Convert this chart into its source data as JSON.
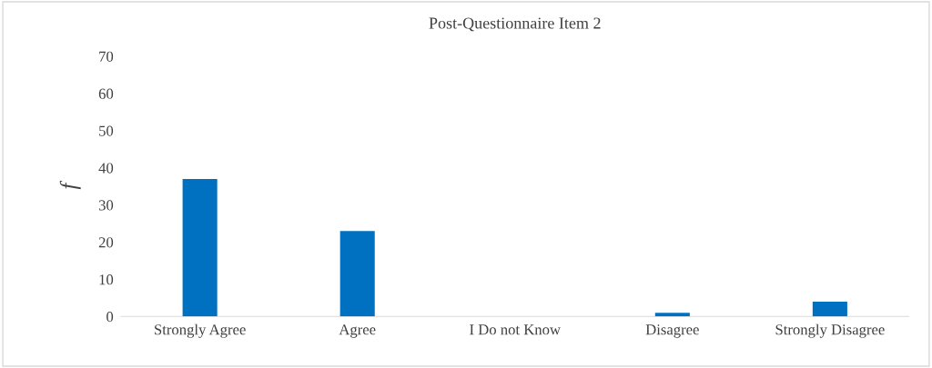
{
  "chart_data": {
    "type": "bar",
    "title": "Post-Questionnaire Item 2",
    "ylabel": "f",
    "categories": [
      "Strongly Agree",
      "Agree",
      "I Do not Know",
      "Disagree",
      "Strongly Disagree"
    ],
    "values": [
      37,
      23,
      0,
      1,
      4
    ],
    "color": "#0070c0",
    "ylim": [
      0,
      70
    ],
    "yticks": [
      0,
      10,
      20,
      30,
      40,
      50,
      60,
      70
    ],
    "grid": false,
    "legend": false
  }
}
